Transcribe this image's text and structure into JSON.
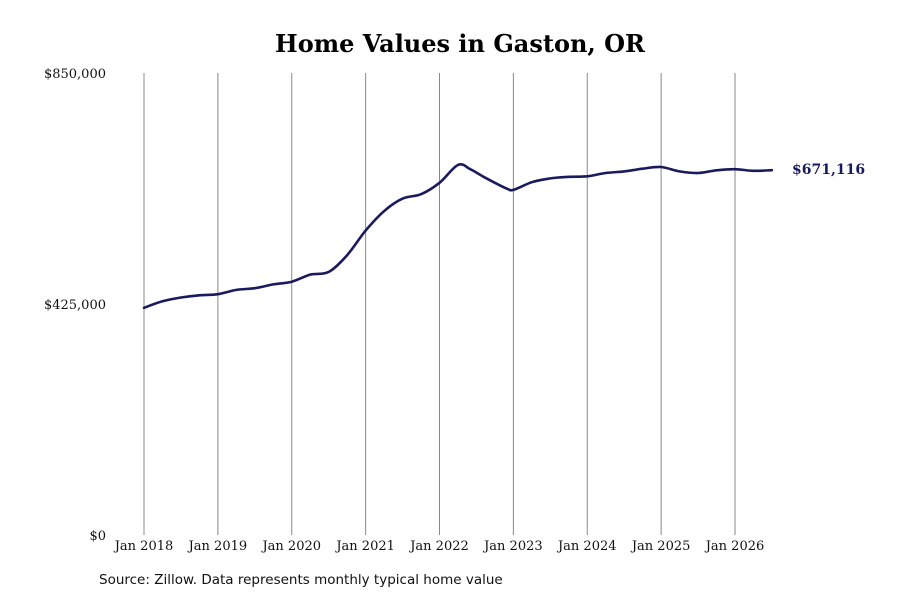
{
  "chart_data": {
    "type": "line",
    "title": "Home Values in Gaston, OR",
    "xlabel": "",
    "ylabel": "",
    "x_ticks": [
      "Jan 2018",
      "Jan 2019",
      "Jan 2020",
      "Jan 2021",
      "Jan 2022",
      "Jan 2023",
      "Jan 2024",
      "Jan 2025",
      "Jan 2026"
    ],
    "y_ticks": [
      "$850,000",
      "$425,000",
      "$0"
    ],
    "y_tick_values": [
      850000,
      425000,
      0
    ],
    "ylim": [
      0,
      850000
    ],
    "grid": "vertical",
    "line_color": "#1a1a5e",
    "grid_color": "#888888",
    "end_label": "$671,116",
    "series": [
      {
        "x": [
          "2018-01",
          "2018-04",
          "2018-07",
          "2018-10",
          "2019-01",
          "2019-04",
          "2019-07",
          "2019-10",
          "2020-01",
          "2020-04",
          "2020-07",
          "2020-10",
          "2021-01",
          "2021-04",
          "2021-07",
          "2021-10",
          "2022-01",
          "2022-04",
          "2022-06",
          "2022-08",
          "2022-10",
          "2022-12",
          "2023-01",
          "2023-04",
          "2023-07",
          "2023-10",
          "2024-01",
          "2024-04",
          "2024-07",
          "2024-10",
          "2025-01",
          "2025-04",
          "2025-07",
          "2025-10",
          "2026-01",
          "2026-04",
          "2026-07"
        ],
        "values": [
          418000,
          430000,
          437000,
          441000,
          443000,
          451000,
          454000,
          461000,
          466000,
          479000,
          484000,
          515000,
          560000,
          596000,
          619000,
          627000,
          648000,
          681000,
          673000,
          660000,
          648000,
          637000,
          635000,
          649000,
          656000,
          659000,
          660000,
          666000,
          669000,
          674000,
          677000,
          669000,
          666000,
          671000,
          673000,
          670000,
          671116
        ]
      }
    ]
  },
  "footer": {
    "source": "Source: Zillow. Data represents monthly typical home value"
  }
}
